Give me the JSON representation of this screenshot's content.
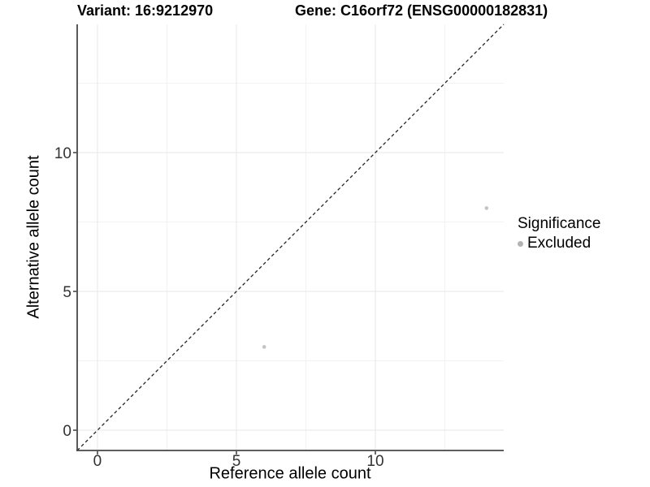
{
  "chart_data": {
    "type": "scatter",
    "titles": {
      "variant": "Variant: 16:9212970",
      "gene": "Gene: C16orf72 (ENSG00000182831)"
    },
    "xlabel": "Reference allele count",
    "ylabel": "Alternative allele count",
    "xlim": [
      -0.73,
      14.62
    ],
    "ylim": [
      -0.73,
      14.62
    ],
    "x_major_ticks": [
      0,
      5,
      10
    ],
    "x_minor_ticks": [
      2.5,
      7.5,
      12.5
    ],
    "y_major_ticks": [
      0,
      5,
      10
    ],
    "y_minor_ticks": [
      2.5,
      7.5,
      12.5
    ],
    "grid": true,
    "identity_line": {
      "slope": 1,
      "intercept": 0,
      "style": "dashed"
    },
    "series": [
      {
        "name": "Excluded",
        "color": "#c4c4c4",
        "points": [
          {
            "x": 6,
            "y": 3
          },
          {
            "x": 14,
            "y": 8
          }
        ]
      }
    ],
    "legend": {
      "title": "Significance",
      "position": "right",
      "items": [
        {
          "label": "Excluded",
          "color": "#b3b3b3"
        }
      ]
    },
    "style": {
      "background": "#ffffff",
      "grid_major_color": "#e7e7e7",
      "grid_minor_color": "#f2f2f2",
      "axis_line_color": "#474747",
      "tick_color": "#474747",
      "tick_label_color": "#333333",
      "identity_line_color": "#222222",
      "point_radius": 2.3,
      "legend_dot_diameter": 7
    }
  }
}
